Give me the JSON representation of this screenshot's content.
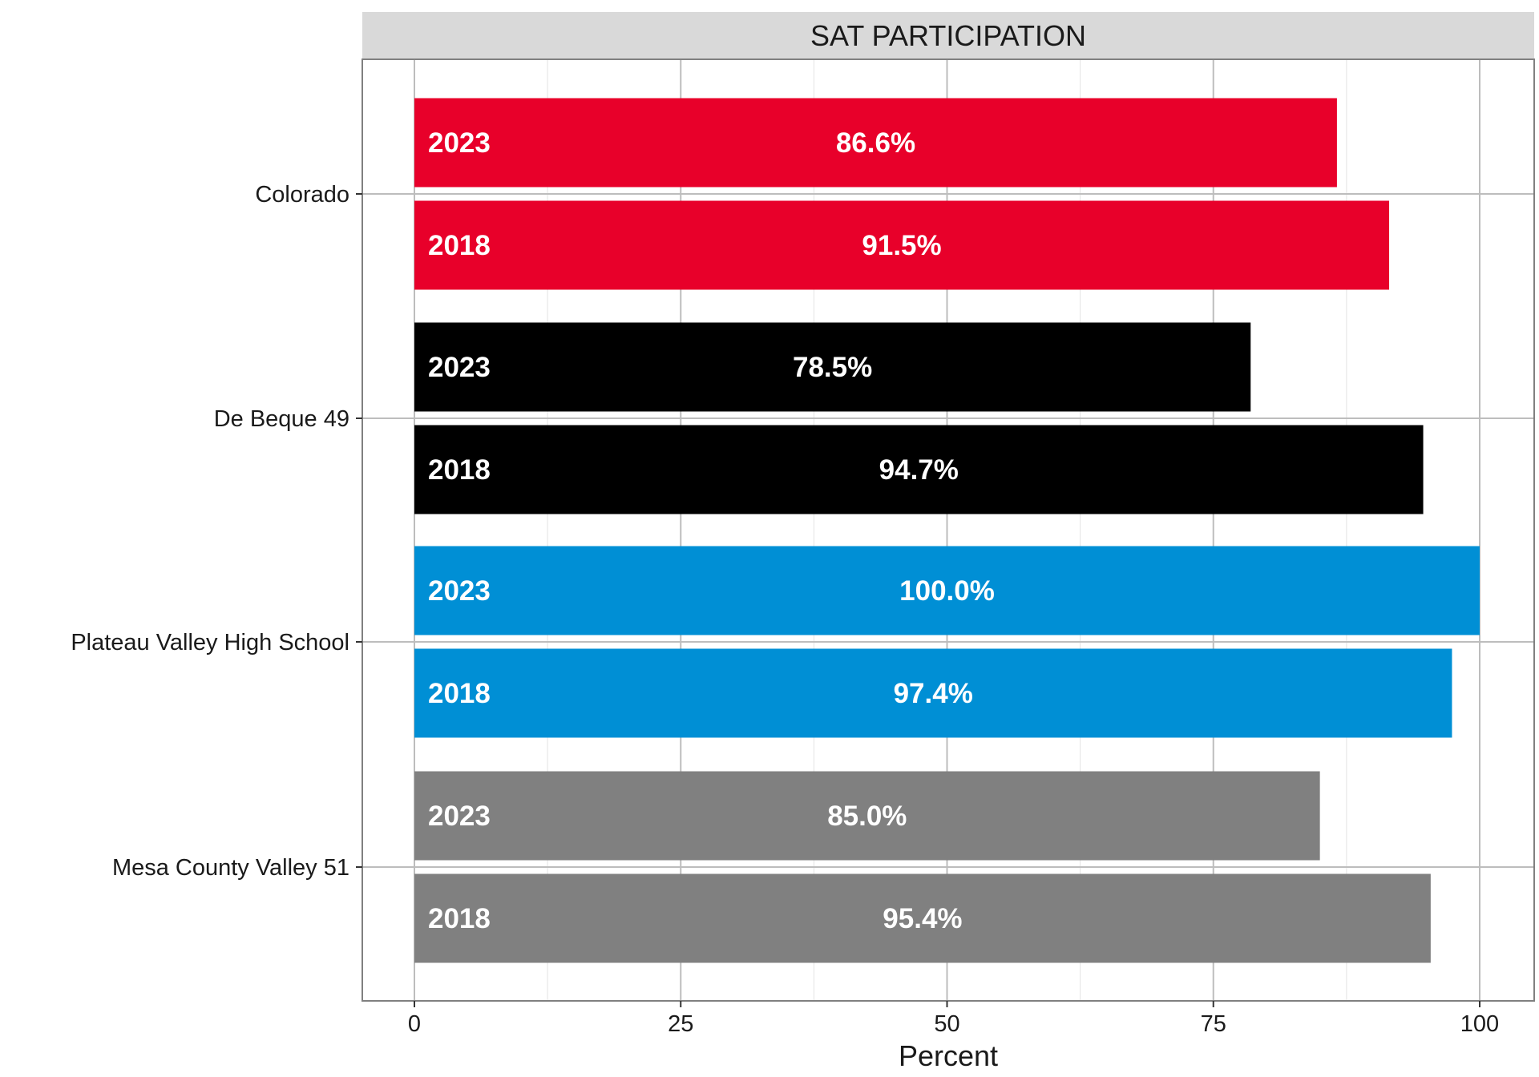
{
  "chart_data": {
    "type": "bar",
    "orientation": "horizontal",
    "title": "SAT PARTICIPATION",
    "xlabel": "Percent",
    "ylabel": "",
    "xlim": [
      0,
      100
    ],
    "xticks": [
      0,
      25,
      50,
      75,
      100
    ],
    "grid": true,
    "categories": [
      "Colorado",
      "De Beque 49",
      "Plateau Valley High School",
      "Mesa County Valley 51"
    ],
    "colors": [
      "#E8002A",
      "#000000",
      "#008FD5",
      "#808080"
    ],
    "series": [
      {
        "name": "2023",
        "values": [
          86.6,
          78.5,
          100.0,
          85.0
        ],
        "labels": [
          "86.6%",
          "78.5%",
          "100.0%",
          "85.0%"
        ]
      },
      {
        "name": "2018",
        "values": [
          91.5,
          94.7,
          97.4,
          95.4
        ],
        "labels": [
          "91.5%",
          "94.7%",
          "97.4%",
          "95.4%"
        ]
      }
    ]
  }
}
